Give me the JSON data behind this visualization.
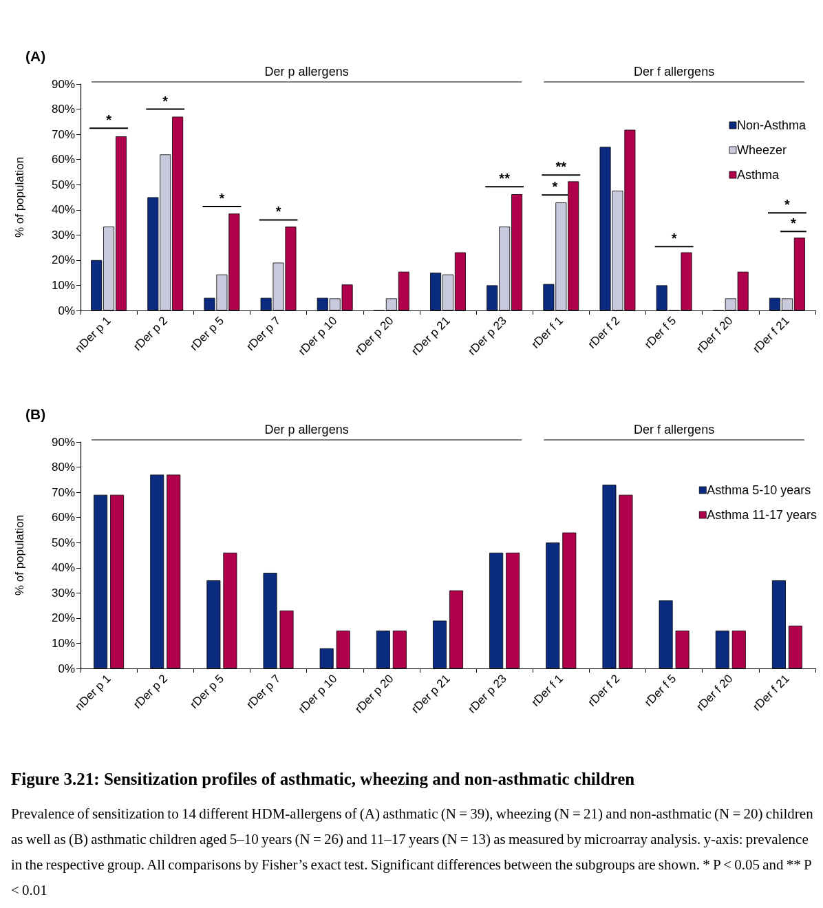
{
  "chart_data": [
    {
      "type": "bar",
      "title": "(A)",
      "ylabel": "% of population",
      "categories": [
        "nDer p 1",
        "rDer p 2",
        "rDer p 5",
        "rDer p 7",
        "rDer p 10",
        "rDer p 20",
        "rDer p 21",
        "rDer p 23",
        "rDer f 1",
        "rDer f 2",
        "rDer f 5",
        "rDer f 20",
        "rDer f 21"
      ],
      "series": [
        {
          "name": "Non-Asthma",
          "color": "#0a2b80",
          "values": [
            20,
            45,
            5,
            5,
            5,
            0,
            15,
            10,
            10.5,
            65,
            10,
            0,
            5
          ]
        },
        {
          "name": "Wheezer",
          "color": "#c9c9dd",
          "values": [
            33.3,
            62,
            14.3,
            19,
            4.8,
            4.8,
            14.3,
            33.3,
            42.9,
            47.6,
            0,
            4.8,
            4.8
          ]
        },
        {
          "name": "Asthma",
          "color": "#b0004c",
          "values": [
            69.2,
            77,
            38.5,
            33.3,
            10.3,
            15.4,
            23.1,
            46.2,
            51.3,
            71.8,
            23.1,
            15.4,
            28.9
          ]
        }
      ],
      "ylim": [
        0,
        90
      ],
      "yticks": [
        {
          "value": 0,
          "label": "0%"
        },
        {
          "value": 10,
          "label": "10%"
        },
        {
          "value": 20,
          "label": "20%"
        },
        {
          "value": 30,
          "label": "30%"
        },
        {
          "value": 40,
          "label": "40%"
        },
        {
          "value": 50,
          "label": "50%"
        },
        {
          "value": 60,
          "label": "60%"
        },
        {
          "value": 70,
          "label": "70%"
        },
        {
          "value": 80,
          "label": "80%"
        },
        {
          "value": 90,
          "label": "90%"
        }
      ],
      "legend": "top right",
      "annotations": [
        "Der p allergens",
        "Der f allergens",
        "*",
        "*",
        "*",
        "*",
        "**",
        "*",
        "**",
        "*",
        "*",
        "*"
      ]
    },
    {
      "type": "bar",
      "title": "(B)",
      "ylabel": "% of population",
      "categories": [
        "nDer p 1",
        "rDer p 2",
        "rDer p 5",
        "rDer p 7",
        "rDer p 10",
        "rDer p 20",
        "rDer p 21",
        "rDer p 23",
        "rDer f 1",
        "rDer f 2",
        "rDer f 5",
        "rDer f 20",
        "rDer f 21"
      ],
      "series": [
        {
          "name": "Asthma 5-10 years",
          "color": "#0a2b80",
          "values": [
            69,
            77,
            35,
            38,
            8,
            15,
            19,
            46,
            50,
            73,
            27,
            15,
            35
          ]
        },
        {
          "name": "Asthma 11-17 years",
          "color": "#b0004c",
          "values": [
            69,
            77,
            46,
            23,
            15,
            15,
            31,
            46,
            54,
            69,
            15,
            15,
            17
          ]
        }
      ],
      "ylim": [
        0,
        90
      ],
      "yticks": [
        {
          "value": 0,
          "label": "0%"
        },
        {
          "value": 10,
          "label": "10%"
        },
        {
          "value": 20,
          "label": "20%"
        },
        {
          "value": 30,
          "label": "30%"
        },
        {
          "value": 40,
          "label": "40%"
        },
        {
          "value": 50,
          "label": "50%"
        },
        {
          "value": 60,
          "label": "60%"
        },
        {
          "value": 70,
          "label": "70%"
        },
        {
          "value": 80,
          "label": "80%"
        },
        {
          "value": 90,
          "label": "90%"
        }
      ],
      "legend": "right",
      "annotations": [
        "Der p allergens",
        "Der f allergens",
        "Figure 3.21: Sensitization profiles of asthmatic, wheezing and non-asthmatic children",
        "Prevalence of sensitization to 14 different HDM-allergens of (A) asthmatic (N = 39), wheezing (N = 21) and non-asthmatic (N = 20) children as well as (B) asthmatic children aged 5–10 years (N = 26) and 11–17 years (N = 13) as measured by microarray analysis. y-axis: prevalence in the respective group. All comparisons by Fisher’s exact test. Significant differences between the subgroups are shown. * P < 0.05 and ** P < 0.01"
      ]
    }
  ]
}
